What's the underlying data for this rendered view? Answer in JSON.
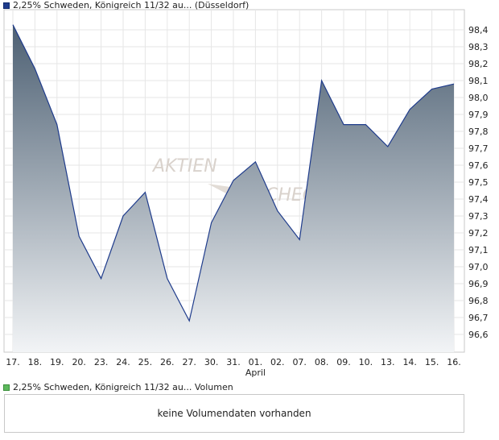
{
  "legend": {
    "price_label": "2,25% Schweden, Königreich 11/32 au... (Düsseldorf)",
    "volume_label": "2,25% Schweden, Königreich 11/32 au... Volumen",
    "price_color": "#1f3c8c",
    "volume_color": "#5cb85c"
  },
  "watermark": {
    "line1": "AKTIEN",
    "line2": "CHECK"
  },
  "volume": {
    "message": "keine Volumendaten vorhanden"
  },
  "chart_data": {
    "type": "area",
    "x": [
      "17.",
      "18.",
      "19.",
      "20.",
      "23.",
      "24.",
      "25.",
      "26.",
      "27.",
      "30.",
      "31.",
      "01.",
      "02.",
      "07.",
      "08.",
      "09.",
      "10.",
      "13.",
      "14.",
      "15.",
      "16."
    ],
    "month_label": {
      "index": 11,
      "text": "April"
    },
    "series": [
      {
        "values": [
          98.43,
          98.17,
          97.84,
          97.18,
          96.93,
          97.3,
          97.44,
          96.93,
          96.68,
          97.26,
          97.51,
          97.62,
          97.33,
          97.16,
          98.1,
          97.84,
          97.84,
          97.71,
          97.93,
          98.05,
          98.08
        ]
      }
    ],
    "y_ticks": [
      "98,4",
      "98,3",
      "98,2",
      "98,1",
      "98,0",
      "97,9",
      "97,8",
      "97,7",
      "97,6",
      "97,5",
      "97,4",
      "97,3",
      "97,2",
      "97,1",
      "97,0",
      "96,9",
      "96,8",
      "96,7",
      "96,6"
    ],
    "ylim": [
      96.5,
      98.5
    ],
    "grid": true,
    "line_color": "#1f3c8c",
    "fill_top_color": "#4d6073",
    "fill_bottom_color": "#f2f4f6"
  }
}
